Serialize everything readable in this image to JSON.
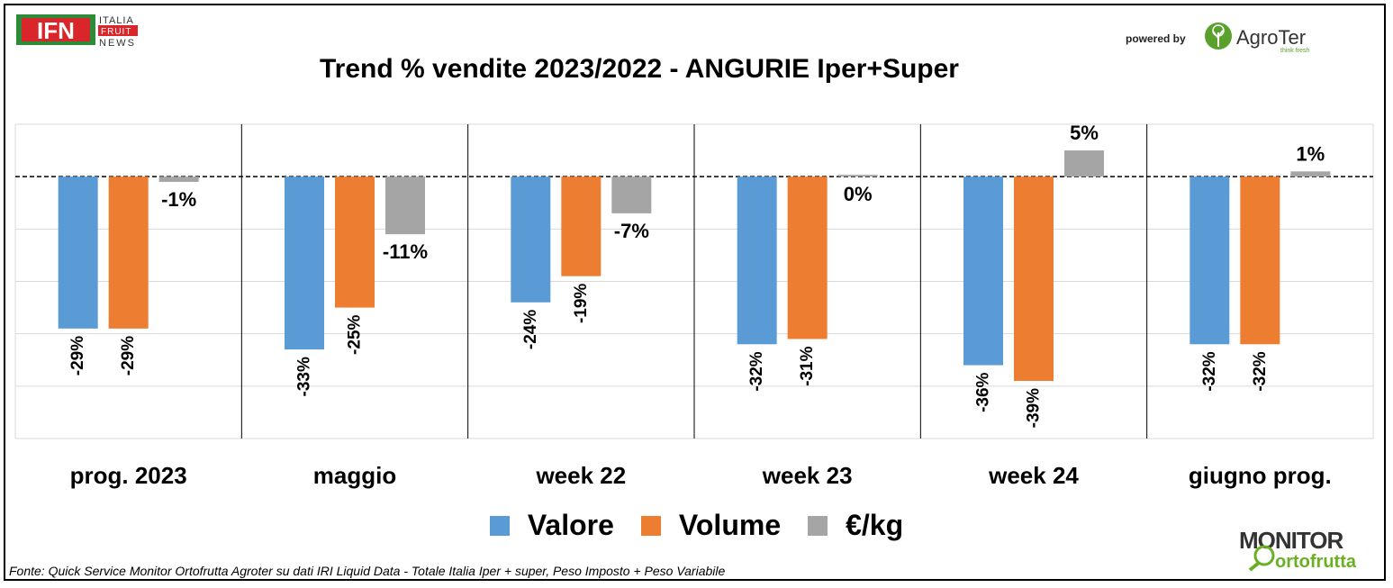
{
  "logo_ifn": {
    "abbr": "IFN",
    "line1": "ITALIA",
    "line2": "FRUIT",
    "line3": "NEWS"
  },
  "powered_by": "powered by",
  "logo_agroter": {
    "name": "AgroTer",
    "tagline": "think fresh"
  },
  "logo_monitor": {
    "line1": "MONITOR",
    "line2": "ortofrutta"
  },
  "source": "Fonte: Quick Service Monitor Ortofrutta Agroter su dati IRI Liquid Data - Totale Italia Iper + super, Peso Imposto + Peso Variabile",
  "colors": {
    "valore": "#5b9bd5",
    "volume": "#ed7d31",
    "eurokg": "#a5a5a5"
  },
  "chart_data": {
    "type": "bar",
    "title": "Trend % vendite 2023/2022 - ANGURIE Iper+Super",
    "categories": [
      "prog. 2023",
      "maggio",
      "week 22",
      "week 23",
      "week 24",
      "giugno prog."
    ],
    "series": [
      {
        "name": "Valore",
        "values": [
          -29,
          -33,
          -24,
          -32,
          -36,
          -32
        ],
        "labels": [
          "-29%",
          "-33%",
          "-24%",
          "-32%",
          "-36%",
          "-32%"
        ]
      },
      {
        "name": "Volume",
        "values": [
          -29,
          -25,
          -19,
          -31,
          -39,
          -32
        ],
        "labels": [
          "-29%",
          "-25%",
          "-19%",
          "-31%",
          "-39%",
          "-32%"
        ]
      },
      {
        "name": "€/kg",
        "values": [
          -1,
          -11,
          -7,
          0,
          5,
          1
        ],
        "labels": [
          "-1%",
          "-11%",
          "-7%",
          "0%",
          "5%",
          "1%"
        ]
      }
    ],
    "ylim": [
      -50,
      10
    ],
    "grid": true,
    "legend": "bottom"
  }
}
